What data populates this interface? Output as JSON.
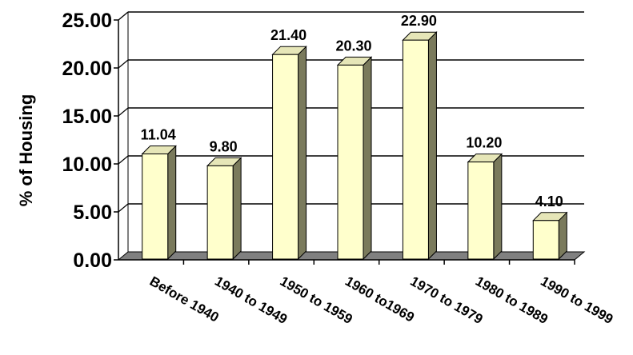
{
  "chart_data": {
    "type": "bar",
    "title": "",
    "xlabel": "",
    "ylabel": "% of Housing",
    "categories": [
      "Before 1940",
      "1940 to 1949",
      "1950 to 1959",
      "1960 to1969",
      "1970 to 1979",
      "1980 to 1989",
      "1990 to 1999"
    ],
    "values": [
      11.04,
      9.8,
      21.4,
      20.3,
      22.9,
      10.2,
      4.1
    ],
    "value_labels": [
      "11.04",
      "9.80",
      "21.40",
      "20.30",
      "22.90",
      "10.20",
      "4.10"
    ],
    "y_ticks": [
      "0.00",
      "5.00",
      "10.00",
      "15.00",
      "20.00",
      "25.00"
    ],
    "ylim": [
      0,
      25
    ],
    "grid": true,
    "legend": "none",
    "style": "3d-column",
    "colors": {
      "bar_front": "#ffffcc",
      "bar_top": "#e6e6b8",
      "bar_side": "#7a7a5c",
      "floor": "#808080",
      "grid": "#000000"
    }
  }
}
